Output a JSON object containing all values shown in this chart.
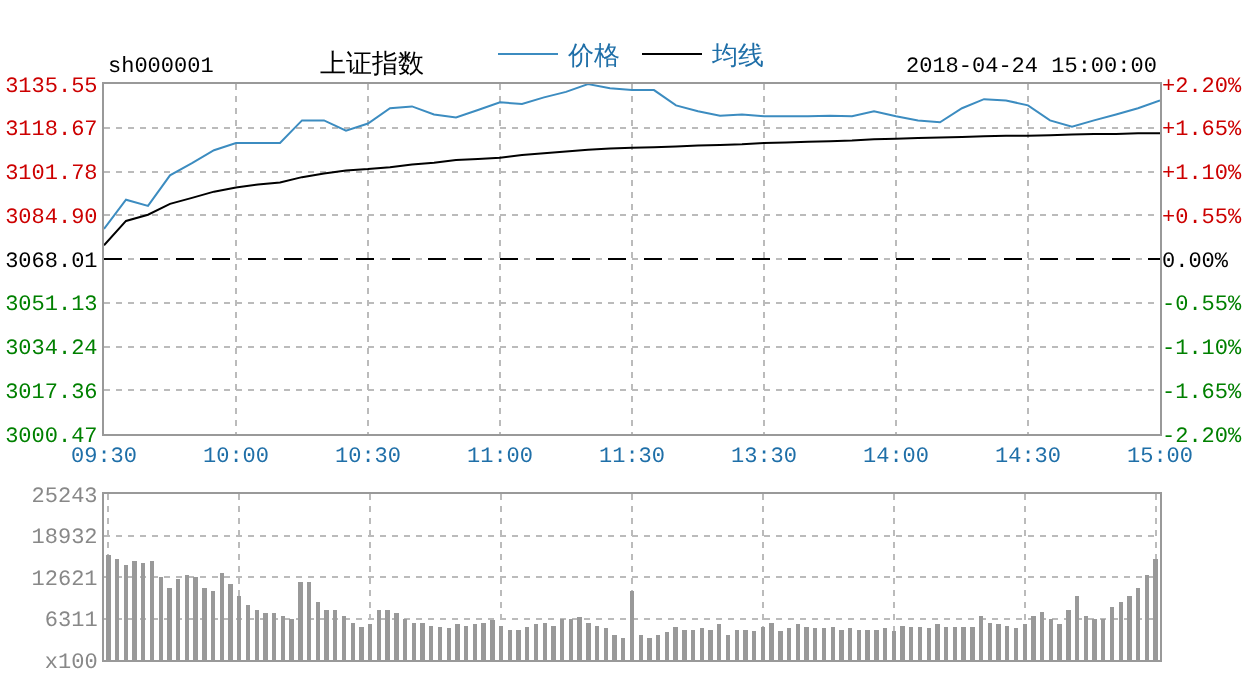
{
  "chart_data": [
    {
      "type": "line",
      "annotations": [
        "sh000001",
        "上证指数",
        "2018-04-24 15:00:00"
      ],
      "categories": [
        "09:30",
        null,
        null,
        null,
        null,
        null,
        "10:00",
        null,
        null,
        null,
        null,
        null,
        "10:30",
        null,
        null,
        null,
        null,
        null,
        "11:00",
        null,
        null,
        null,
        null,
        null,
        "11:30",
        null,
        null,
        null,
        null,
        null,
        "13:30",
        null,
        null,
        null,
        null,
        null,
        "14:00",
        null,
        null,
        null,
        null,
        null,
        "14:30",
        null,
        null,
        null,
        null,
        null,
        "15:00"
      ],
      "series": [
        {
          "name": "价格",
          "color": "#3c8cc0",
          "values": [
            3079.6,
            3090.9,
            3088.5,
            3100.3,
            3105.0,
            3110.0,
            3112.8,
            3112.8,
            3112.8,
            3121.5,
            3121.5,
            3117.5,
            3120.3,
            3126.2,
            3126.9,
            3123.8,
            3122.6,
            3125.5,
            3128.5,
            3127.8,
            3130.4,
            3132.5,
            3135.5,
            3133.9,
            3133.2,
            3133.2,
            3127.3,
            3125.0,
            3123.3,
            3123.8,
            3123.1,
            3123.1,
            3123.1,
            3123.3,
            3123.1,
            3125.0,
            3123.1,
            3121.5,
            3120.8,
            3126.2,
            3129.7,
            3129.2,
            3127.3,
            3121.5,
            3119.1,
            3121.5,
            3123.8,
            3126.2,
            3129.2
          ]
        },
        {
          "name": "均线",
          "color": "#000000",
          "values": [
            3073.3,
            3082.7,
            3085.1,
            3089.3,
            3091.6,
            3094.0,
            3095.6,
            3096.8,
            3097.5,
            3099.6,
            3101.0,
            3102.2,
            3102.7,
            3103.4,
            3104.5,
            3105.2,
            3106.2,
            3106.6,
            3107.1,
            3108.1,
            3108.8,
            3109.5,
            3110.2,
            3110.7,
            3110.9,
            3111.1,
            3111.4,
            3111.8,
            3112.0,
            3112.3,
            3112.8,
            3113.0,
            3113.3,
            3113.5,
            3113.7,
            3114.2,
            3114.4,
            3114.7,
            3114.9,
            3115.1,
            3115.4,
            3115.6,
            3115.6,
            3115.8,
            3116.1,
            3116.3,
            3116.3,
            3116.5,
            3116.5
          ]
        }
      ],
      "ylim": [
        3000.47,
        3135.55
      ],
      "yticks": [
        3000.47,
        3017.36,
        3034.24,
        3051.13,
        3068.01,
        {
          "value": 3084.9,
          "label": "3084.90"
        },
        3101.78,
        3118.67,
        3135.55
      ],
      "y2lim": [
        -2.2,
        2.2
      ],
      "y2ticks": [
        {
          "value": -2.2,
          "label": "-2.20%"
        },
        {
          "value": -1.65,
          "label": "-1.65%"
        },
        {
          "value": -1.1,
          "label": "-1.10%"
        },
        {
          "value": -0.55,
          "label": "-0.55%"
        },
        {
          "value": 0,
          "label": "0.00%"
        },
        {
          "value": 0.55,
          "label": "+0.55%"
        },
        {
          "value": 1.1,
          "label": "+1.10%"
        },
        {
          "value": 1.65,
          "label": "+1.65%"
        },
        {
          "value": 2.2,
          "label": "+2.20%"
        }
      ],
      "ref_lines": [
        {
          "axis": "y",
          "value": 3068.01,
          "color": "#000000",
          "line_style": "dashed"
        }
      ],
      "grid": true,
      "legend": "top",
      "marker": "none",
      "line_style": "solid"
    },
    {
      "type": "bar",
      "color": "#999999",
      "categories": [
        null,
        null,
        null,
        null,
        null,
        null,
        null,
        null,
        null,
        null,
        null,
        null,
        null,
        null,
        null,
        null,
        null,
        null,
        null,
        null,
        null,
        null,
        null,
        null,
        null,
        null,
        null,
        null,
        null,
        null,
        null,
        null,
        null,
        null,
        null,
        null,
        null,
        null,
        null,
        null,
        null,
        null,
        null,
        null,
        null,
        null,
        null,
        null,
        null,
        null,
        null,
        null,
        null,
        null,
        null,
        null,
        null,
        null,
        null,
        null,
        null,
        null,
        null,
        null,
        null,
        null,
        null,
        null,
        null,
        null,
        null,
        null,
        null,
        null,
        null,
        null,
        null,
        null,
        null,
        null,
        null,
        null,
        null,
        null,
        null,
        null,
        null,
        null,
        null,
        null,
        null,
        null,
        null,
        null,
        null,
        null,
        null,
        null,
        null,
        null,
        null,
        null,
        null,
        null,
        null,
        null,
        null,
        null,
        null,
        null,
        null,
        null,
        null,
        null,
        null,
        null,
        null,
        null,
        null,
        null,
        null
      ],
      "values": [
        16000,
        15400,
        14500,
        15000,
        14700,
        15000,
        12600,
        11000,
        12300,
        13000,
        12600,
        10900,
        10500,
        13300,
        11500,
        9700,
        8400,
        7600,
        7100,
        7100,
        6700,
        6300,
        11800,
        11800,
        8800,
        7600,
        7600,
        6700,
        5700,
        5000,
        5500,
        7600,
        7600,
        7100,
        6300,
        5700,
        5700,
        5200,
        5000,
        4900,
        5500,
        5200,
        5500,
        5700,
        6100,
        5200,
        4600,
        4600,
        5000,
        5500,
        5700,
        5200,
        6300,
        6300,
        6500,
        5700,
        5200,
        4900,
        3800,
        3400,
        10500,
        3800,
        3400,
        3800,
        4200,
        5000,
        4600,
        4600,
        4900,
        4600,
        5500,
        3800,
        4600,
        4600,
        4400,
        5000,
        5700,
        4400,
        4900,
        5500,
        5000,
        4900,
        4900,
        5000,
        4600,
        4900,
        4600,
        4600,
        4600,
        4900,
        4400,
        5200,
        5000,
        5000,
        4900,
        5500,
        5000,
        5000,
        5000,
        5000,
        6700,
        5700,
        5500,
        5200,
        4900,
        5500,
        6700,
        7300,
        6300,
        5500,
        7600,
        9700,
        6700,
        6300,
        6300,
        8000,
        8800,
        9700,
        10900,
        13000,
        15300
      ],
      "ylim": [
        0,
        25243
      ],
      "yticks": [
        {
          "value": 0,
          "label": "x100"
        },
        6311,
        12621,
        18932,
        25243
      ],
      "grid": true,
      "tick_labels": "y"
    }
  ]
}
